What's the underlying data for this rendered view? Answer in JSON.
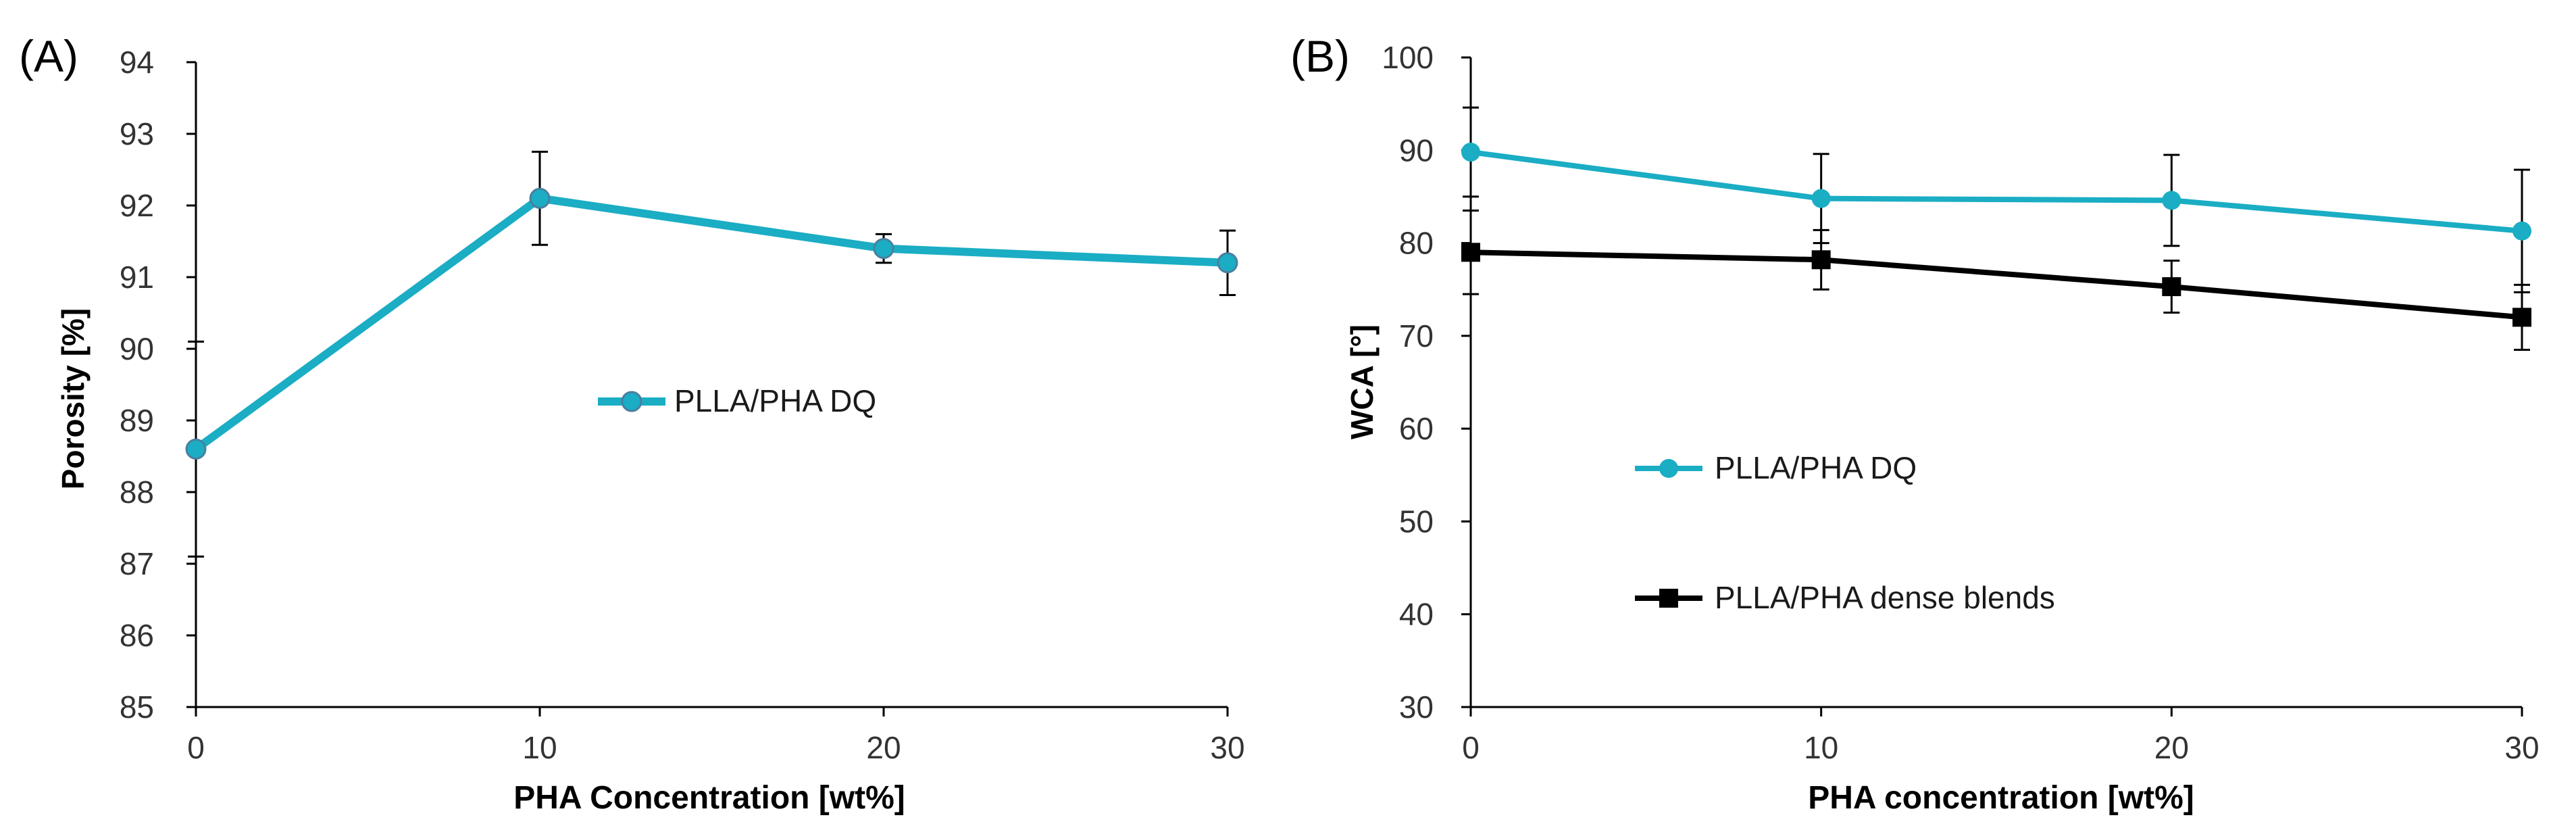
{
  "chart_data": [
    {
      "panel_label": "(A)",
      "type": "line",
      "title": "",
      "xlabel": "PHA Concentration [wt%]",
      "ylabel": "Porosity [%]",
      "xlim": [
        0,
        30
      ],
      "ylim": [
        85,
        94
      ],
      "xticks": [
        0,
        10,
        20,
        30
      ],
      "yticks": [
        85,
        86,
        87,
        88,
        89,
        90,
        91,
        92,
        93,
        94
      ],
      "grid": false,
      "legend_position": "center",
      "series": [
        {
          "name": "PLLA/PHA DQ",
          "color": "#1AADC4",
          "marker": "circle",
          "x": [
            0,
            10,
            20,
            30
          ],
          "y": [
            88.6,
            92.1,
            91.4,
            91.2
          ],
          "err": [
            1.5,
            0.65,
            0.2,
            0.45
          ]
        }
      ]
    },
    {
      "panel_label": "(B)",
      "type": "line",
      "title": "",
      "xlabel": "PHA concentration [wt%]",
      "ylabel": "WCA [°]",
      "xlim": [
        0,
        30
      ],
      "ylim": [
        30,
        100
      ],
      "xticks": [
        0,
        10,
        20,
        30
      ],
      "yticks": [
        30,
        40,
        50,
        60,
        70,
        80,
        90,
        100
      ],
      "grid": false,
      "legend_position": "center-left",
      "series": [
        {
          "name": "PLLA/PHA DQ",
          "color": "#1AADC4",
          "marker": "circle",
          "x": [
            0,
            10,
            20,
            30
          ],
          "y": [
            89.8,
            84.8,
            84.6,
            81.3
          ],
          "err": [
            4.8,
            4.8,
            4.9,
            6.6
          ]
        },
        {
          "name": "PLLA/PHA dense blends",
          "color": "#000000",
          "marker": "square",
          "x": [
            0,
            10,
            20,
            30
          ],
          "y": [
            79.0,
            78.2,
            75.3,
            72.0
          ],
          "err": [
            4.5,
            3.2,
            2.8,
            3.5
          ]
        }
      ]
    }
  ]
}
